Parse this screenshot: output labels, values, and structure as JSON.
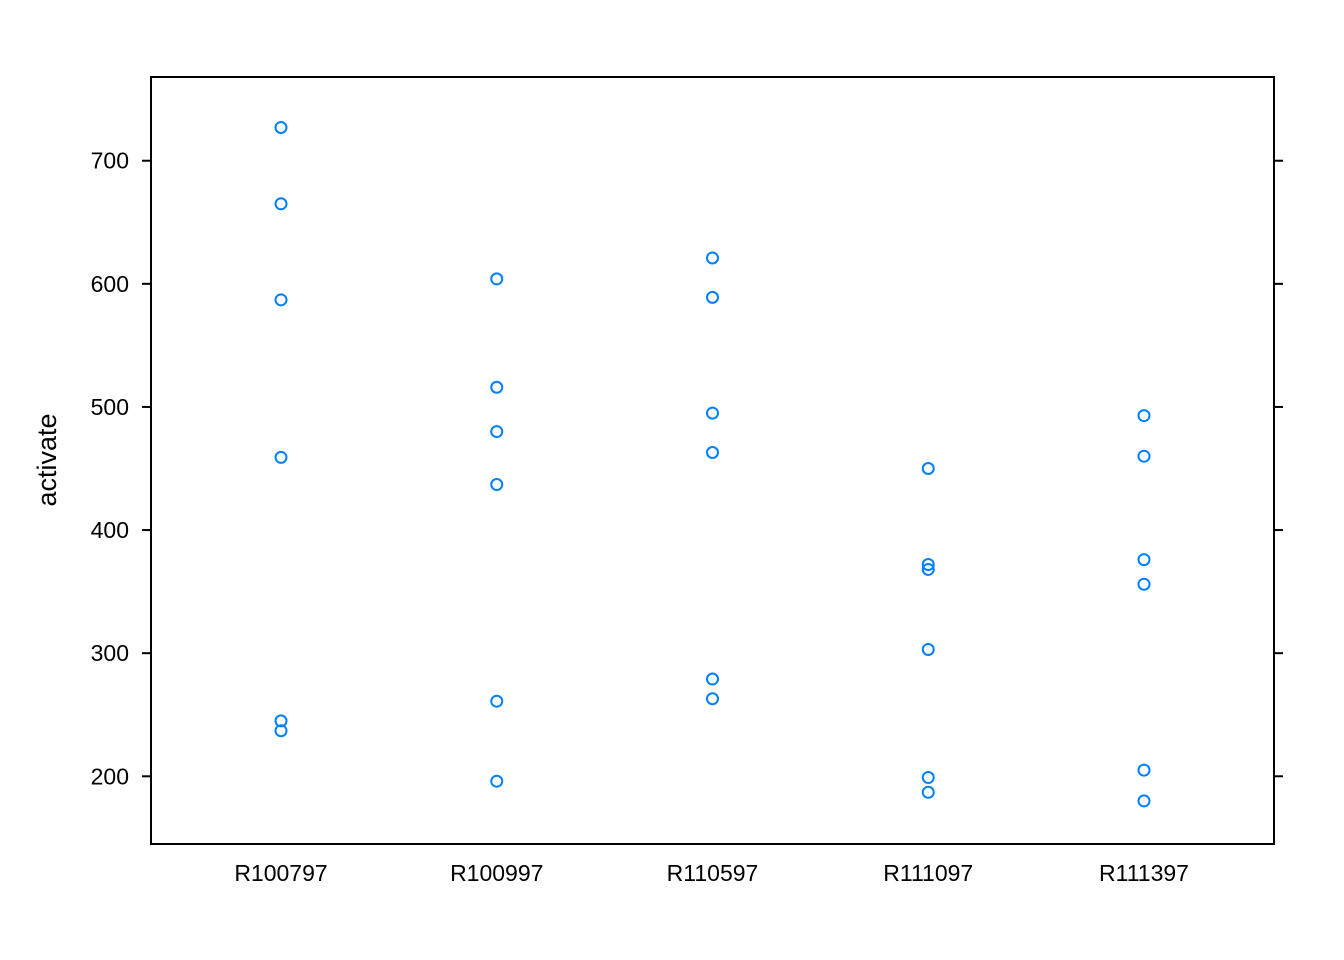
{
  "chart_data": {
    "type": "scatter",
    "title": "",
    "xlabel": "",
    "ylabel": "activate",
    "categories": [
      "R100797",
      "R100997",
      "R110597",
      "R111097",
      "R111397"
    ],
    "series": [
      {
        "points": [
          {
            "x": "R100797",
            "y": 727
          },
          {
            "x": "R100797",
            "y": 665
          },
          {
            "x": "R100797",
            "y": 587
          },
          {
            "x": "R100797",
            "y": 459
          },
          {
            "x": "R100797",
            "y": 245
          },
          {
            "x": "R100797",
            "y": 237
          },
          {
            "x": "R100997",
            "y": 604
          },
          {
            "x": "R100997",
            "y": 516
          },
          {
            "x": "R100997",
            "y": 480
          },
          {
            "x": "R100997",
            "y": 437
          },
          {
            "x": "R100997",
            "y": 261
          },
          {
            "x": "R100997",
            "y": 196
          },
          {
            "x": "R110597",
            "y": 621
          },
          {
            "x": "R110597",
            "y": 589
          },
          {
            "x": "R110597",
            "y": 495
          },
          {
            "x": "R110597",
            "y": 463
          },
          {
            "x": "R110597",
            "y": 279
          },
          {
            "x": "R110597",
            "y": 263
          },
          {
            "x": "R111097",
            "y": 450
          },
          {
            "x": "R111097",
            "y": 372
          },
          {
            "x": "R111097",
            "y": 368
          },
          {
            "x": "R111097",
            "y": 303
          },
          {
            "x": "R111097",
            "y": 199
          },
          {
            "x": "R111097",
            "y": 187
          },
          {
            "x": "R111397",
            "y": 493
          },
          {
            "x": "R111397",
            "y": 460
          },
          {
            "x": "R111397",
            "y": 376
          },
          {
            "x": "R111397",
            "y": 356
          },
          {
            "x": "R111397",
            "y": 205
          },
          {
            "x": "R111397",
            "y": 180
          }
        ]
      }
    ],
    "yticks": [
      200,
      300,
      400,
      500,
      600,
      700
    ],
    "ylim": [
      145,
      768
    ],
    "grid": false,
    "marker_color": "#0080FF",
    "axis_color": "#000000"
  }
}
